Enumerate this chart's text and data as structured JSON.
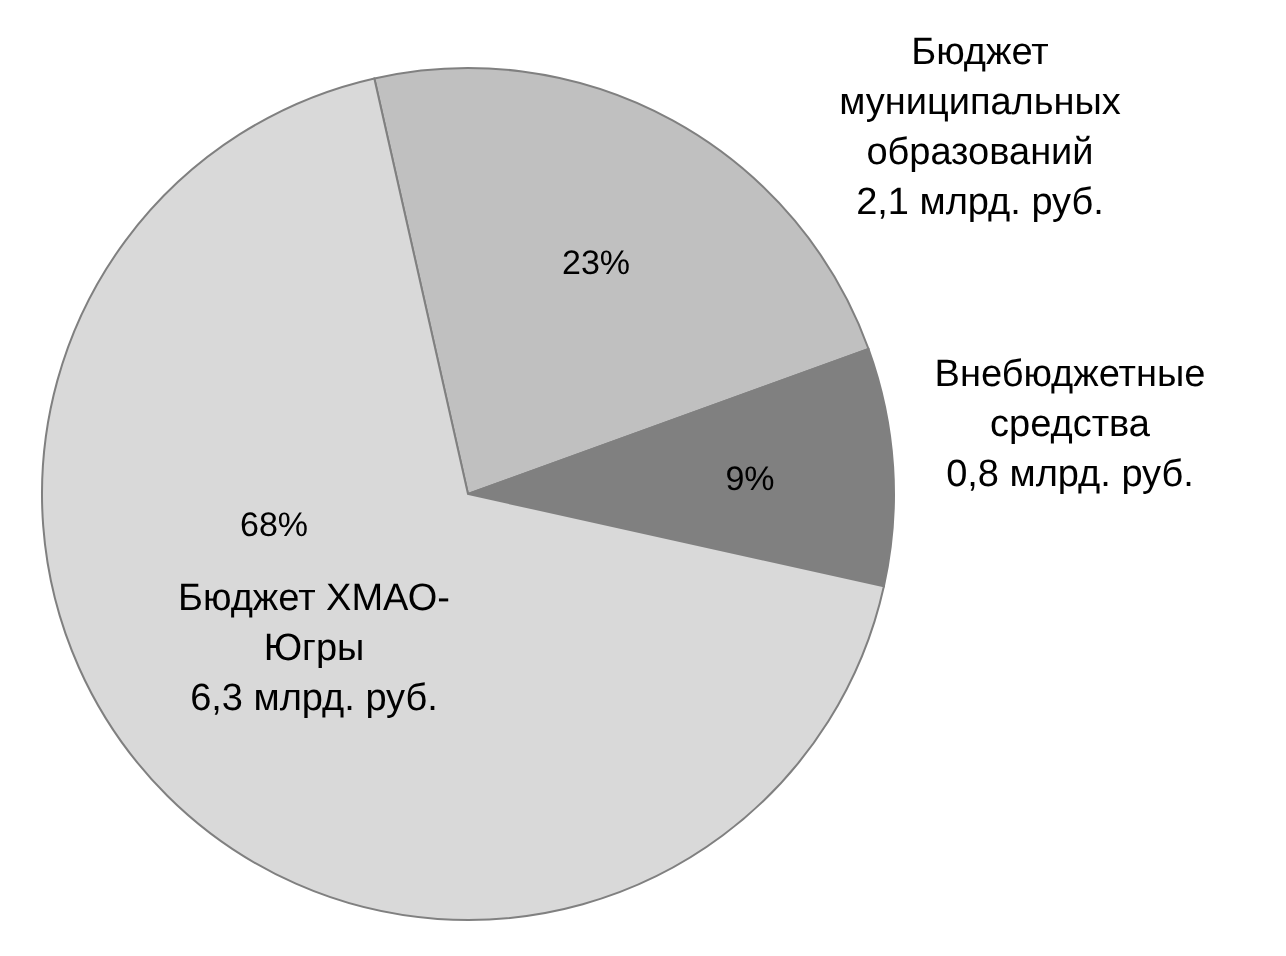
{
  "chart_data": {
    "type": "pie",
    "categories": [
      "Бюджет\nмуниципальных\nобразований\n2,1 млрд. руб.",
      "Внебюджетные\nсредства\n0,8 млрд. руб.",
      "Бюджет ХМАО-\nЮгры\n6,3 млрд. руб."
    ],
    "values": [
      23,
      9,
      68
    ],
    "value_labels": [
      "23%",
      "9%",
      "68%"
    ],
    "colors": [
      "#c0c0c0",
      "#808080",
      "#d9d9d9"
    ]
  }
}
